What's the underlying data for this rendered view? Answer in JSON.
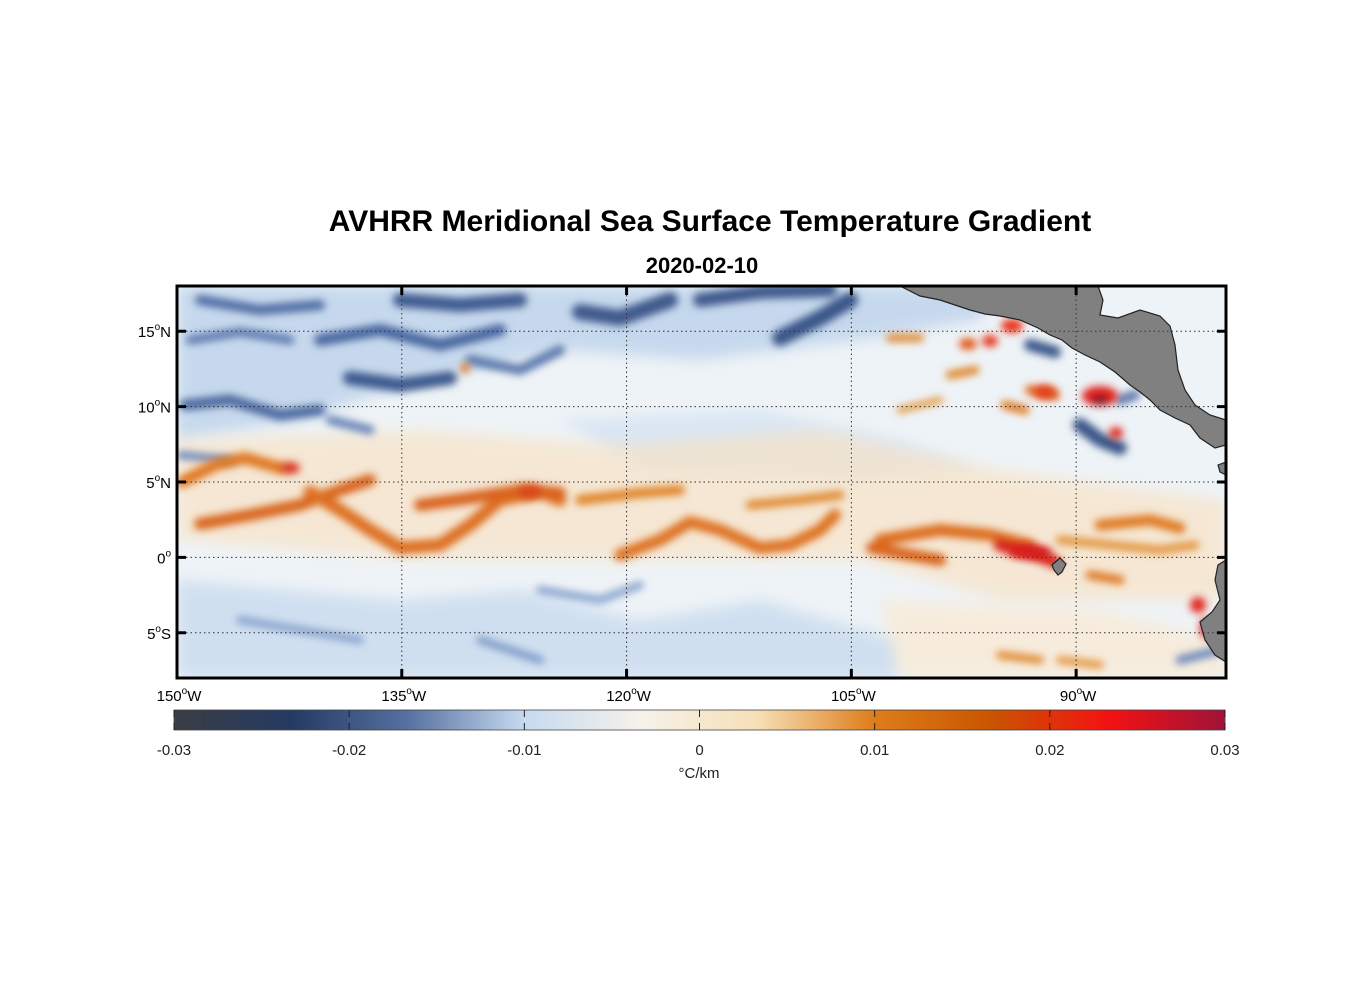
{
  "title": "AVHRR Meridional Sea Surface Temperature Gradient",
  "subtitle": "2020-02-10",
  "map": {
    "lon_range": [
      -150,
      -80
    ],
    "lat_range": [
      -8,
      18
    ],
    "lon_ticks": [
      {
        "value": -150,
        "label": "150",
        "suffix": "W"
      },
      {
        "value": -135,
        "label": "135",
        "suffix": "W"
      },
      {
        "value": -120,
        "label": "120",
        "suffix": "W"
      },
      {
        "value": -105,
        "label": "105",
        "suffix": "W"
      },
      {
        "value": -90,
        "label": "90",
        "suffix": "W"
      }
    ],
    "lat_ticks": [
      {
        "value": 15,
        "label": "15",
        "suffix": "N"
      },
      {
        "value": 10,
        "label": "10",
        "suffix": "N"
      },
      {
        "value": 5,
        "label": "5",
        "suffix": "N"
      },
      {
        "value": 0,
        "label": "0",
        "suffix": ""
      },
      {
        "value": -5,
        "label": "5",
        "suffix": "S"
      }
    ],
    "degree_symbol": "o",
    "grid": "dotted",
    "land_color": "#808080"
  },
  "colorbar": {
    "min": -0.03,
    "max": 0.03,
    "ticks": [
      {
        "value": -0.03,
        "label": "-0.03"
      },
      {
        "value": -0.02,
        "label": "-0.02"
      },
      {
        "value": -0.01,
        "label": "-0.01"
      },
      {
        "value": 0,
        "label": "0"
      },
      {
        "value": 0.01,
        "label": "0.01"
      },
      {
        "value": 0.02,
        "label": "0.02"
      },
      {
        "value": 0.03,
        "label": "0.03"
      }
    ],
    "unit": "°C/km",
    "colors": [
      "#3a3d44",
      "#243a63",
      "#5670a0",
      "#c6daf0",
      "#f6f2ea",
      "#f6dfb6",
      "#de7d1a",
      "#c95500",
      "#f41212",
      "#a0133a"
    ]
  },
  "features": {
    "positive_color": "#d96a1c",
    "strong_positive_color": "#dc1a14",
    "negative_color": "#3e5a8c",
    "weak_negative_color": "#aac4e6"
  }
}
